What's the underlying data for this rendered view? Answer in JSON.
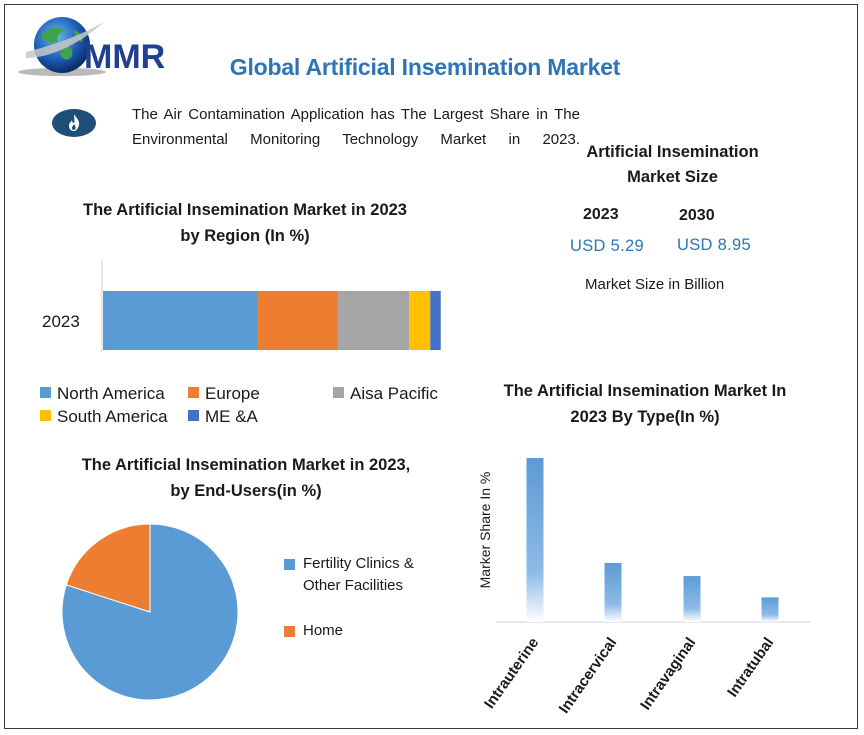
{
  "header": {
    "logo_text": "MMR",
    "title": "Global Artificial Insemination Market"
  },
  "insight": {
    "icon": "fire-icon",
    "text": "The Air Contamination Application has The Largest Share in The Environmental Monitoring Technology Market in 2023."
  },
  "market_size": {
    "title": "Artificial Insemination Market Size",
    "year_a": "2023",
    "value_a": "USD 5.29",
    "year_b": "2030",
    "value_b": "USD 8.95",
    "unit": "Market Size in Billion"
  },
  "colors": {
    "blue": "#5b9bd5",
    "orange": "#ed7d31",
    "gray": "#a5a5a5",
    "yellow": "#ffc000",
    "dark_blue": "#4472c4",
    "title_blue": "#2e75b6"
  },
  "chart_data": [
    {
      "type": "bar",
      "orientation": "horizontal-stacked",
      "title": "The Artificial Insemination Market in 2023 by Region (In %)",
      "categories": [
        "2023"
      ],
      "series": [
        {
          "name": "North America",
          "values": [
            44
          ],
          "color": "#5b9bd5"
        },
        {
          "name": "Europe",
          "values": [
            23
          ],
          "color": "#ed7d31"
        },
        {
          "name": "Aisa Pacific",
          "values": [
            20.5
          ],
          "color": "#a5a5a5"
        },
        {
          "name": "South America",
          "values": [
            6
          ],
          "color": "#ffc000"
        },
        {
          "name": "ME &A",
          "values": [
            3
          ],
          "color": "#4472c4"
        }
      ],
      "xlim": [
        0,
        100
      ],
      "legend": "bottom"
    },
    {
      "type": "pie",
      "title": "The Artificial Insemination Market in 2023, by End-Users(in %)",
      "labels": [
        "Fertility Clinics & Other Facilities",
        "Home"
      ],
      "values": [
        80,
        20
      ],
      "colors": [
        "#5b9bd5",
        "#ed7d31"
      ],
      "legend": "right"
    },
    {
      "type": "bar",
      "title": "The Artificial Insemination Market In 2023 By Type(In %)",
      "categories": [
        "Intrauterine",
        "Intracervical",
        "Intravaginal",
        "Intratubal"
      ],
      "values": [
        100,
        36,
        28,
        15
      ],
      "ylabel": "Marker Share In %",
      "ylim": [
        0,
        100
      ],
      "color": "#5b9bd5"
    }
  ]
}
